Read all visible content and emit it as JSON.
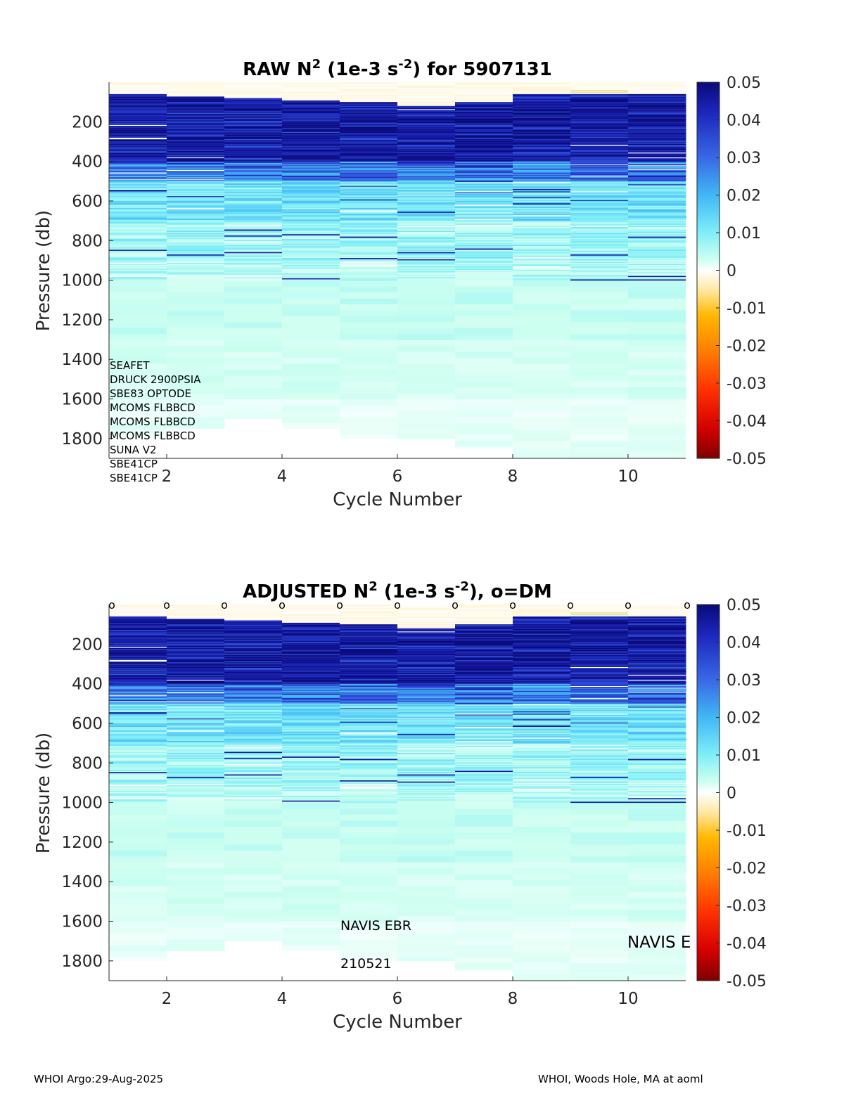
{
  "panels": [
    {
      "title": "RAW N² (1e-3 s⁻²) for 5907131",
      "title_parts": {
        "prefix": "RAW N",
        "sup1": "2",
        "mid": " (1e-3 s",
        "sup2": "-2",
        "suffix": ") for 5907131"
      },
      "xlabel": "Cycle Number",
      "ylabel": "Pressure (db)",
      "annotations": [
        "SEAFET",
        "DRUCK 2900PSIA",
        "SBE83 OPTODE",
        "MCOMS FLBBCD",
        "MCOMS FLBBCD",
        "MCOMS FLBBCD",
        "SUNA V2",
        "SBE41CP",
        "SBE41CP"
      ],
      "markers": [],
      "marker_label": ""
    },
    {
      "title": "ADJUSTED N² (1e-3 s⁻²), o=DM",
      "title_parts": {
        "prefix": "ADJUSTED N",
        "sup1": "2",
        "mid": " (1e-3 s",
        "sup2": "-2",
        "suffix": "), o=DM"
      },
      "xlabel": "Cycle Number",
      "ylabel": "Pressure (db)",
      "annotations": [],
      "markers": [
        1,
        2,
        3,
        4,
        5,
        6,
        7,
        8,
        9,
        10,
        11
      ],
      "marker_label": "o",
      "platform_label": "NAVIS EBR",
      "date_label": "210521",
      "side_label": "NAVIS E"
    }
  ],
  "colorbar": {
    "ticks": [
      "0.05",
      "0.04",
      "0.03",
      "0.02",
      "0.01",
      "0",
      "-0.01",
      "-0.02",
      "-0.03",
      "-0.04",
      "-0.05"
    ],
    "range": [
      -0.05,
      0.05
    ],
    "colormap": [
      "#7f0000",
      "#d40000",
      "#ff3000",
      "#ff7a00",
      "#ffb800",
      "#ffe9a8",
      "#ffffff",
      "#ccfff0",
      "#80eef8",
      "#40b8f4",
      "#3868e6",
      "#1c26bc",
      "#0a0a7a"
    ]
  },
  "chart_data": {
    "type": "heatmap",
    "x": [
      1,
      2,
      3,
      4,
      5,
      6,
      7,
      8,
      9,
      10,
      11
    ],
    "xlim": [
      1,
      11
    ],
    "xticks": [
      "2",
      "4",
      "6",
      "8",
      "10"
    ],
    "ylim": [
      0,
      1900
    ],
    "yreversed": true,
    "yticks": [
      "200",
      "400",
      "600",
      "800",
      "1000",
      "1200",
      "1400",
      "1600",
      "1800"
    ],
    "max_pressure": [
      1800,
      1750,
      1700,
      1750,
      1800,
      1800,
      1850,
      1900,
      1900,
      1900,
      1900
    ],
    "mixed_layer_depth": [
      60,
      70,
      80,
      90,
      100,
      120,
      100,
      60,
      40,
      50,
      60
    ],
    "profile_levels": [
      {
        "pmin": 0,
        "pmax": 60,
        "value": -0.003
      },
      {
        "pmin": 60,
        "pmax": 400,
        "value": 0.045
      },
      {
        "pmin": 400,
        "pmax": 500,
        "value": 0.032
      },
      {
        "pmin": 500,
        "pmax": 700,
        "value": 0.018
      },
      {
        "pmin": 700,
        "pmax": 900,
        "value": 0.013
      },
      {
        "pmin": 900,
        "pmax": 1000,
        "value": 0.011
      },
      {
        "pmin": 1000,
        "pmax": 1300,
        "value": 0.009
      },
      {
        "pmin": 1300,
        "pmax": 1600,
        "value": 0.007
      },
      {
        "pmin": 1600,
        "pmax": 1900,
        "value": 0.004
      }
    ]
  },
  "footer": {
    "left": "WHOI Argo:29-Aug-2025",
    "right": "WHOI, Woods Hole, MA at aoml"
  }
}
